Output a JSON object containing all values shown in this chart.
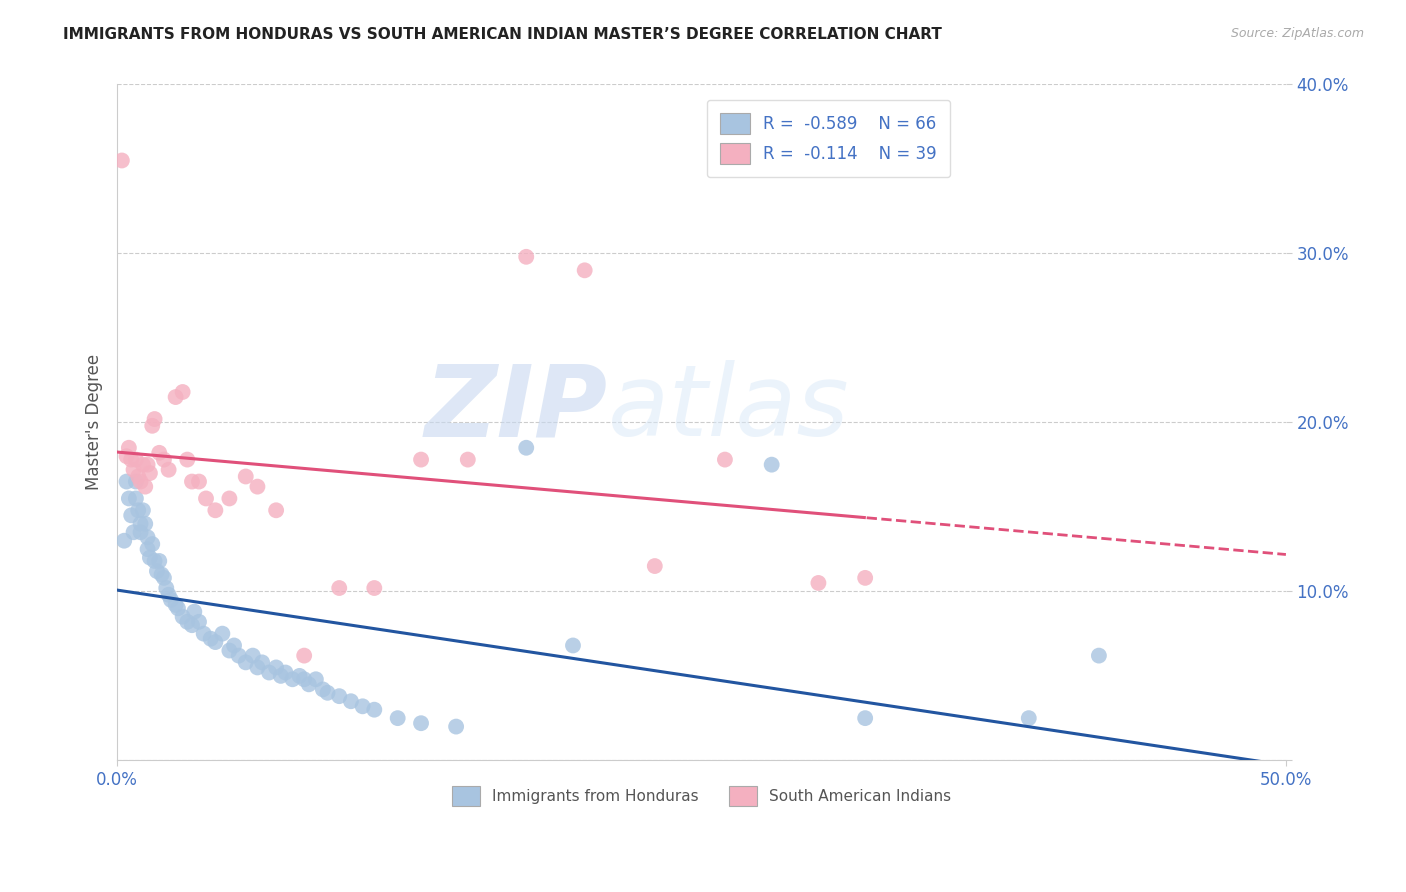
{
  "title": "IMMIGRANTS FROM HONDURAS VS SOUTH AMERICAN INDIAN MASTER’S DEGREE CORRELATION CHART",
  "source": "Source: ZipAtlas.com",
  "ylabel": "Master's Degree",
  "x_min": 0.0,
  "x_max": 0.5,
  "y_min": 0.0,
  "y_max": 0.4,
  "x_ticks": [
    0.0,
    0.5
  ],
  "x_tick_labels": [
    "0.0%",
    "50.0%"
  ],
  "y_ticks": [
    0.0,
    0.1,
    0.2,
    0.3,
    0.4
  ],
  "y_tick_labels": [
    "",
    "10.0%",
    "20.0%",
    "30.0%",
    "40.0%"
  ],
  "blue_R": -0.589,
  "blue_N": 66,
  "pink_R": -0.114,
  "pink_N": 39,
  "blue_color": "#a8c4e0",
  "blue_line_color": "#2255a0",
  "pink_color": "#f4b0c0",
  "pink_line_color": "#e0507a",
  "watermark_zip": "ZIP",
  "watermark_atlas": "atlas",
  "legend_label_blue": "Immigrants from Honduras",
  "legend_label_pink": "South American Indians",
  "blue_x": [
    0.003,
    0.004,
    0.005,
    0.006,
    0.007,
    0.008,
    0.008,
    0.009,
    0.01,
    0.01,
    0.011,
    0.012,
    0.013,
    0.013,
    0.014,
    0.015,
    0.016,
    0.017,
    0.018,
    0.019,
    0.02,
    0.021,
    0.022,
    0.023,
    0.025,
    0.026,
    0.028,
    0.03,
    0.032,
    0.033,
    0.035,
    0.037,
    0.04,
    0.042,
    0.045,
    0.048,
    0.05,
    0.052,
    0.055,
    0.058,
    0.06,
    0.062,
    0.065,
    0.068,
    0.07,
    0.072,
    0.075,
    0.078,
    0.08,
    0.082,
    0.085,
    0.088,
    0.09,
    0.095,
    0.1,
    0.105,
    0.11,
    0.12,
    0.13,
    0.145,
    0.175,
    0.195,
    0.28,
    0.32,
    0.39,
    0.42
  ],
  "blue_y": [
    0.13,
    0.165,
    0.155,
    0.145,
    0.135,
    0.165,
    0.155,
    0.148,
    0.14,
    0.135,
    0.148,
    0.14,
    0.132,
    0.125,
    0.12,
    0.128,
    0.118,
    0.112,
    0.118,
    0.11,
    0.108,
    0.102,
    0.098,
    0.095,
    0.092,
    0.09,
    0.085,
    0.082,
    0.08,
    0.088,
    0.082,
    0.075,
    0.072,
    0.07,
    0.075,
    0.065,
    0.068,
    0.062,
    0.058,
    0.062,
    0.055,
    0.058,
    0.052,
    0.055,
    0.05,
    0.052,
    0.048,
    0.05,
    0.048,
    0.045,
    0.048,
    0.042,
    0.04,
    0.038,
    0.035,
    0.032,
    0.03,
    0.025,
    0.022,
    0.02,
    0.185,
    0.068,
    0.175,
    0.025,
    0.025,
    0.062
  ],
  "pink_x": [
    0.002,
    0.004,
    0.005,
    0.006,
    0.007,
    0.008,
    0.009,
    0.01,
    0.011,
    0.012,
    0.013,
    0.014,
    0.015,
    0.016,
    0.018,
    0.02,
    0.022,
    0.025,
    0.028,
    0.03,
    0.032,
    0.035,
    0.038,
    0.042,
    0.048,
    0.055,
    0.06,
    0.068,
    0.08,
    0.095,
    0.11,
    0.13,
    0.15,
    0.175,
    0.2,
    0.23,
    0.26,
    0.3,
    0.32
  ],
  "pink_y": [
    0.355,
    0.18,
    0.185,
    0.178,
    0.172,
    0.178,
    0.168,
    0.165,
    0.175,
    0.162,
    0.175,
    0.17,
    0.198,
    0.202,
    0.182,
    0.178,
    0.172,
    0.215,
    0.218,
    0.178,
    0.165,
    0.165,
    0.155,
    0.148,
    0.155,
    0.168,
    0.162,
    0.148,
    0.062,
    0.102,
    0.102,
    0.178,
    0.178,
    0.298,
    0.29,
    0.115,
    0.178,
    0.105,
    0.108
  ]
}
